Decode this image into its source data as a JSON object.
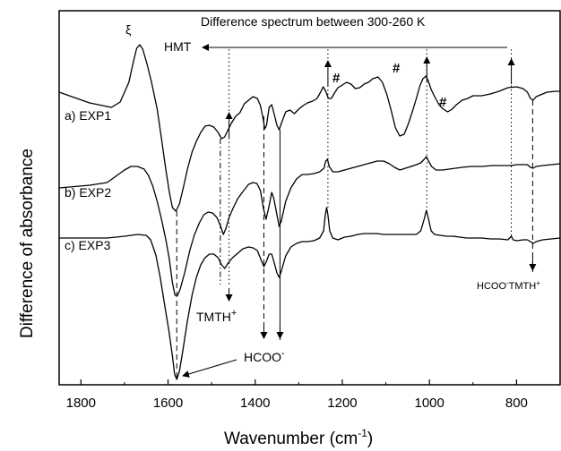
{
  "chart_data": {
    "type": "line",
    "title": "Difference spectrum between 300-260 K",
    "xlabel_main": "Wavenumber (cm",
    "xlabel_sup": "-1",
    "xlabel_end": ")",
    "ylabel": "Difference of absorbance",
    "xlim": [
      1850,
      700
    ],
    "x_reversed": true,
    "xticks": [
      "1800",
      "1600",
      "1400",
      "1200",
      "1000",
      "800"
    ],
    "y_ticks_labeled": false,
    "series": [
      {
        "name": "a) EXP1",
        "color": "#000000",
        "points": [
          [
            1850,
            103
          ],
          [
            1780,
            115
          ],
          [
            1730,
            120
          ],
          [
            1710,
            114
          ],
          [
            1690,
            92
          ],
          [
            1680,
            70
          ],
          [
            1672,
            54
          ],
          [
            1665,
            50
          ],
          [
            1658,
            55
          ],
          [
            1648,
            72
          ],
          [
            1638,
            92
          ],
          [
            1625,
            122
          ],
          [
            1615,
            155
          ],
          [
            1605,
            190
          ],
          [
            1597,
            215
          ],
          [
            1590,
            232
          ],
          [
            1582,
            236
          ],
          [
            1574,
            228
          ],
          [
            1565,
            210
          ],
          [
            1555,
            188
          ],
          [
            1545,
            170
          ],
          [
            1535,
            158
          ],
          [
            1525,
            148
          ],
          [
            1515,
            141
          ],
          [
            1505,
            140
          ],
          [
            1495,
            142
          ],
          [
            1485,
            148
          ],
          [
            1477,
            155
          ],
          [
            1470,
            153
          ],
          [
            1465,
            148
          ],
          [
            1455,
            138
          ],
          [
            1445,
            130
          ],
          [
            1435,
            126
          ],
          [
            1425,
            116
          ],
          [
            1415,
            112
          ],
          [
            1405,
            108
          ],
          [
            1395,
            110
          ],
          [
            1388,
            118
          ],
          [
            1382,
            132
          ],
          [
            1378,
            144
          ],
          [
            1374,
            140
          ],
          [
            1368,
            120
          ],
          [
            1362,
            117
          ],
          [
            1356,
            128
          ],
          [
            1350,
            140
          ],
          [
            1345,
            145
          ],
          [
            1340,
            138
          ],
          [
            1330,
            125
          ],
          [
            1320,
            123
          ],
          [
            1310,
            127
          ],
          [
            1300,
            122
          ],
          [
            1290,
            118
          ],
          [
            1280,
            115
          ],
          [
            1268,
            113
          ],
          [
            1258,
            110
          ],
          [
            1250,
            103
          ],
          [
            1244,
            97
          ],
          [
            1238,
            102
          ],
          [
            1232,
            110
          ],
          [
            1225,
            110
          ],
          [
            1218,
            104
          ],
          [
            1210,
            98
          ],
          [
            1200,
            95
          ],
          [
            1190,
            92
          ],
          [
            1180,
            94
          ],
          [
            1170,
            99
          ],
          [
            1160,
            98
          ],
          [
            1150,
            94
          ],
          [
            1140,
            92
          ],
          [
            1130,
            88
          ],
          [
            1118,
            86
          ],
          [
            1108,
            92
          ],
          [
            1098,
            105
          ],
          [
            1088,
            123
          ],
          [
            1078,
            143
          ],
          [
            1068,
            152
          ],
          [
            1058,
            150
          ],
          [
            1048,
            138
          ],
          [
            1038,
            123
          ],
          [
            1030,
            110
          ],
          [
            1022,
            96
          ],
          [
            1015,
            88
          ],
          [
            1008,
            85
          ],
          [
            1003,
            90
          ],
          [
            996,
            100
          ],
          [
            988,
            108
          ],
          [
            978,
            117
          ],
          [
            968,
            122
          ],
          [
            958,
            125
          ],
          [
            948,
            122
          ],
          [
            938,
            117
          ],
          [
            925,
            112
          ],
          [
            912,
            110
          ],
          [
            900,
            107
          ],
          [
            880,
            107
          ],
          [
            860,
            105
          ],
          [
            840,
            102
          ],
          [
            820,
            98
          ],
          [
            800,
            97
          ],
          [
            785,
            99
          ],
          [
            775,
            103
          ],
          [
            768,
            110
          ],
          [
            762,
            112
          ],
          [
            755,
            108
          ],
          [
            745,
            106
          ],
          [
            730,
            103
          ],
          [
            710,
            102
          ],
          [
            700,
            102
          ]
        ]
      },
      {
        "name": "b) EXP2",
        "color": "#000000",
        "points": [
          [
            1850,
            210
          ],
          [
            1780,
            207
          ],
          [
            1740,
            204
          ],
          [
            1720,
            197
          ],
          [
            1700,
            190
          ],
          [
            1685,
            186
          ],
          [
            1670,
            186
          ],
          [
            1655,
            189
          ],
          [
            1645,
            196
          ],
          [
            1635,
            208
          ],
          [
            1625,
            225
          ],
          [
            1615,
            245
          ],
          [
            1605,
            268
          ],
          [
            1597,
            290
          ],
          [
            1590,
            316
          ],
          [
            1584,
            330
          ],
          [
            1578,
            330
          ],
          [
            1572,
            323
          ],
          [
            1562,
            305
          ],
          [
            1550,
            280
          ],
          [
            1540,
            263
          ],
          [
            1528,
            249
          ],
          [
            1518,
            240
          ],
          [
            1508,
            237
          ],
          [
            1498,
            238
          ],
          [
            1488,
            243
          ],
          [
            1480,
            252
          ],
          [
            1473,
            262
          ],
          [
            1467,
            255
          ],
          [
            1460,
            243
          ],
          [
            1450,
            232
          ],
          [
            1440,
            222
          ],
          [
            1428,
            214
          ],
          [
            1415,
            206
          ],
          [
            1405,
            204
          ],
          [
            1396,
            205
          ],
          [
            1388,
            213
          ],
          [
            1381,
            233
          ],
          [
            1375,
            245
          ],
          [
            1368,
            230
          ],
          [
            1362,
            215
          ],
          [
            1357,
            222
          ],
          [
            1350,
            240
          ],
          [
            1345,
            253
          ],
          [
            1340,
            247
          ],
          [
            1330,
            225
          ],
          [
            1318,
            210
          ],
          [
            1305,
            200
          ],
          [
            1292,
            195
          ],
          [
            1280,
            195
          ],
          [
            1265,
            194
          ],
          [
            1252,
            192
          ],
          [
            1242,
            188
          ],
          [
            1238,
            180
          ],
          [
            1234,
            178
          ],
          [
            1230,
            186
          ],
          [
            1222,
            192
          ],
          [
            1210,
            192
          ],
          [
            1195,
            190
          ],
          [
            1180,
            188
          ],
          [
            1165,
            186
          ],
          [
            1150,
            184
          ],
          [
            1135,
            182
          ],
          [
            1120,
            180
          ],
          [
            1105,
            180
          ],
          [
            1092,
            183
          ],
          [
            1080,
            187
          ],
          [
            1068,
            190
          ],
          [
            1055,
            188
          ],
          [
            1042,
            186
          ],
          [
            1030,
            184
          ],
          [
            1020,
            182
          ],
          [
            1012,
            178
          ],
          [
            1007,
            175
          ],
          [
            1002,
            180
          ],
          [
            995,
            186
          ],
          [
            985,
            190
          ],
          [
            970,
            190
          ],
          [
            955,
            189
          ],
          [
            940,
            188
          ],
          [
            925,
            187
          ],
          [
            905,
            186
          ],
          [
            880,
            186
          ],
          [
            855,
            185
          ],
          [
            830,
            185
          ],
          [
            812,
            185
          ],
          [
            800,
            184
          ],
          [
            788,
            184
          ],
          [
            775,
            184
          ],
          [
            768,
            187
          ],
          [
            762,
            188
          ],
          [
            755,
            186
          ],
          [
            740,
            185
          ],
          [
            720,
            184
          ],
          [
            700,
            183
          ]
        ]
      },
      {
        "name": "c) EXP3",
        "color": "#000000",
        "points": [
          [
            1850,
            266
          ],
          [
            1780,
            266
          ],
          [
            1740,
            266
          ],
          [
            1700,
            264
          ],
          [
            1670,
            262
          ],
          [
            1650,
            263
          ],
          [
            1640,
            268
          ],
          [
            1628,
            285
          ],
          [
            1618,
            310
          ],
          [
            1608,
            340
          ],
          [
            1598,
            370
          ],
          [
            1590,
            398
          ],
          [
            1585,
            418
          ],
          [
            1580,
            424
          ],
          [
            1574,
            415
          ],
          [
            1566,
            392
          ],
          [
            1556,
            360
          ],
          [
            1545,
            330
          ],
          [
            1535,
            310
          ],
          [
            1525,
            296
          ],
          [
            1515,
            288
          ],
          [
            1505,
            284
          ],
          [
            1495,
            284
          ],
          [
            1485,
            288
          ],
          [
            1477,
            296
          ],
          [
            1470,
            300
          ],
          [
            1462,
            294
          ],
          [
            1452,
            288
          ],
          [
            1440,
            283
          ],
          [
            1428,
            278
          ],
          [
            1415,
            276
          ],
          [
            1405,
            277
          ],
          [
            1395,
            280
          ],
          [
            1387,
            290
          ],
          [
            1380,
            298
          ],
          [
            1374,
            292
          ],
          [
            1368,
            284
          ],
          [
            1362,
            284
          ],
          [
            1356,
            294
          ],
          [
            1350,
            305
          ],
          [
            1345,
            310
          ],
          [
            1340,
            303
          ],
          [
            1330,
            286
          ],
          [
            1318,
            276
          ],
          [
            1305,
            272
          ],
          [
            1292,
            270
          ],
          [
            1280,
            270
          ],
          [
            1265,
            269
          ],
          [
            1252,
            266
          ],
          [
            1243,
            258
          ],
          [
            1239,
            240
          ],
          [
            1236,
            232
          ],
          [
            1233,
            240
          ],
          [
            1229,
            258
          ],
          [
            1222,
            266
          ],
          [
            1210,
            268
          ],
          [
            1195,
            265
          ],
          [
            1180,
            264
          ],
          [
            1165,
            262
          ],
          [
            1150,
            261
          ],
          [
            1135,
            261
          ],
          [
            1120,
            261
          ],
          [
            1105,
            262
          ],
          [
            1090,
            262
          ],
          [
            1075,
            262
          ],
          [
            1060,
            262
          ],
          [
            1045,
            262
          ],
          [
            1030,
            262
          ],
          [
            1020,
            258
          ],
          [
            1012,
            245
          ],
          [
            1007,
            235
          ],
          [
            1002,
            245
          ],
          [
            996,
            258
          ],
          [
            988,
            262
          ],
          [
            975,
            263
          ],
          [
            960,
            264
          ],
          [
            945,
            264
          ],
          [
            930,
            265
          ],
          [
            915,
            266
          ],
          [
            900,
            266
          ],
          [
            880,
            266
          ],
          [
            860,
            267
          ],
          [
            840,
            267
          ],
          [
            820,
            268
          ],
          [
            812,
            264
          ],
          [
            808,
            268
          ],
          [
            800,
            269
          ],
          [
            785,
            268
          ],
          [
            775,
            268
          ],
          [
            768,
            270
          ],
          [
            762,
            272
          ],
          [
            755,
            270
          ],
          [
            740,
            268
          ],
          [
            720,
            267
          ],
          [
            700,
            266
          ]
        ]
      }
    ],
    "vertical_markers": [
      {
        "wn": 1580,
        "style": "dashed"
      },
      {
        "wn": 1460,
        "style": "dotted"
      },
      {
        "wn": 1480,
        "style": "dashdot"
      },
      {
        "wn": 1380,
        "style": "dashed"
      },
      {
        "wn": 1343,
        "style": "solid"
      },
      {
        "wn": 1233,
        "style": "dotted"
      },
      {
        "wn": 1006,
        "style": "dotted"
      },
      {
        "wn": 812,
        "style": "dotted"
      },
      {
        "wn": 763,
        "style": "dashed"
      }
    ],
    "annotations": {
      "xi": "ξ",
      "hmt": "HMT",
      "tmth": "TMTH",
      "tmth_sup": "+",
      "hcoo": "HCOO",
      "hcoo_sup": "-",
      "hcoo_tmth_a": "HCOO",
      "hcoo_tmth_sup1": "-",
      "hcoo_tmth_b": "TMTH",
      "hcoo_tmth_sup2": "+",
      "hash": "#"
    }
  }
}
